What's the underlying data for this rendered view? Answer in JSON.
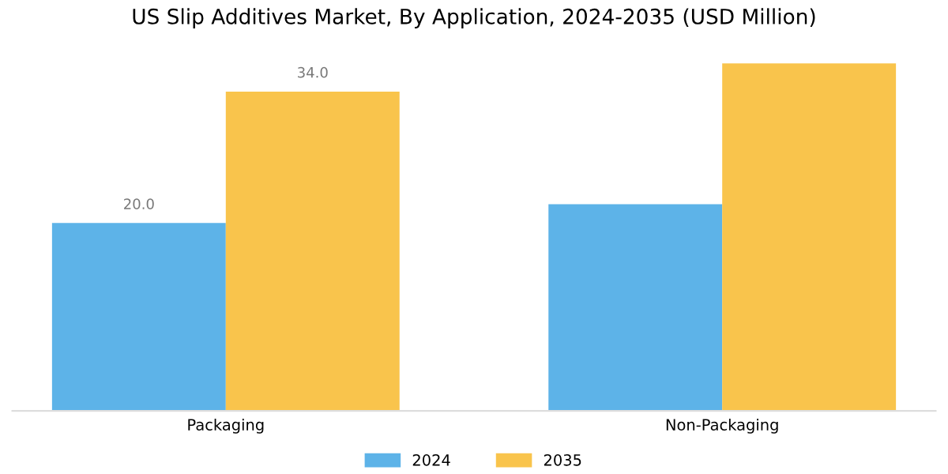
{
  "chart_data": {
    "type": "bar",
    "title": "US Slip Additives Market, By Application, 2024-2035 (USD Million)",
    "categories": [
      "Packaging",
      "Non-Packaging"
    ],
    "series": [
      {
        "name": "2024",
        "color": "#5db3e8",
        "values": [
          20.0,
          22.0
        ],
        "value_labels": [
          "20.0",
          null
        ]
      },
      {
        "name": "2035",
        "color": "#f9c44c",
        "values": [
          34.0,
          37.0
        ],
        "value_labels": [
          "34.0",
          null
        ]
      }
    ],
    "legend": "bottom",
    "grid": false
  }
}
